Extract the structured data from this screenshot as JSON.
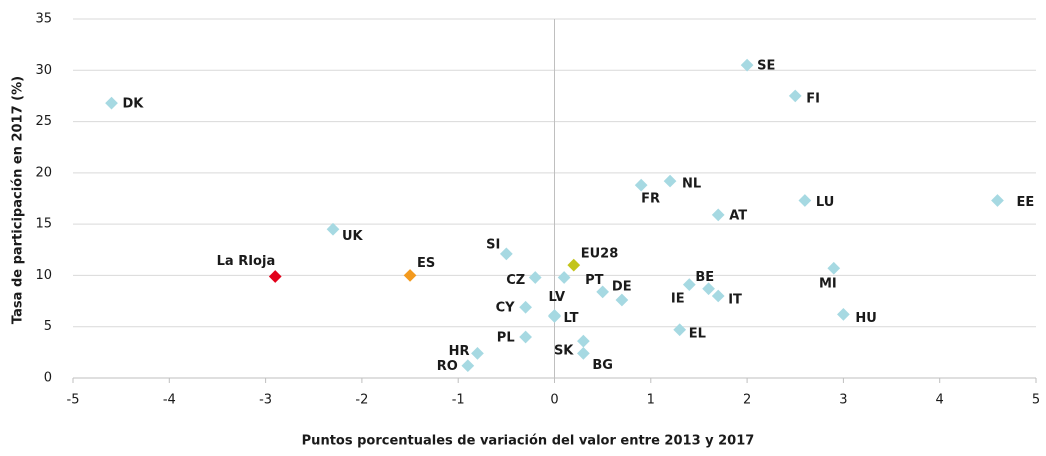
{
  "chart_data": {
    "type": "scatter",
    "xlabel": "Puntos porcentuales de variación del valor entre 2013 y 2017",
    "ylabel": "Tasa de participación en 2017 (%)",
    "labels": [
      "DK",
      "UK",
      "La RIoja",
      "ES",
      "SI",
      "CZ",
      "PT",
      "EU28",
      "LV",
      "CY",
      "LT",
      "PL",
      "HR",
      "RO",
      "SK",
      "BG",
      null,
      "DE",
      "FR",
      "NL",
      "SE",
      "FI",
      "AT",
      "LU",
      "EE",
      "BE",
      "IE",
      "IT",
      "MI",
      "HU",
      "EL"
    ],
    "x": [
      -4.6,
      -2.3,
      -2.9,
      -1.5,
      -0.5,
      -0.2,
      0.1,
      0.2,
      0.0,
      -0.3,
      0.0,
      -0.3,
      -0.8,
      -0.9,
      0.3,
      0.3,
      0.5,
      0.7,
      0.9,
      1.2,
      2.0,
      2.5,
      1.7,
      2.6,
      4.6,
      1.4,
      1.6,
      1.7,
      2.9,
      3.0,
      1.3
    ],
    "values": [
      26.8,
      14.5,
      9.9,
      10.0,
      12.1,
      9.8,
      9.8,
      11.0,
      6.1,
      6.9,
      6.0,
      4.0,
      2.4,
      1.2,
      3.6,
      2.4,
      8.4,
      7.6,
      18.8,
      19.2,
      30.5,
      27.5,
      15.9,
      17.3,
      17.3,
      9.1,
      8.7,
      8.0,
      10.7,
      6.2,
      4.7
    ],
    "colors": [
      "#a6d9e2",
      "#a6d9e2",
      "#e2001a",
      "#f39a1e",
      "#a6d9e2",
      "#a6d9e2",
      "#a6d9e2",
      "#c3c41a",
      "#a6d9e2",
      "#a6d9e2",
      "#a6d9e2",
      "#a6d9e2",
      "#a6d9e2",
      "#a6d9e2",
      "#a6d9e2",
      "#a6d9e2",
      "#a6d9e2",
      "#a6d9e2",
      "#a6d9e2",
      "#a6d9e2",
      "#a6d9e2",
      "#a6d9e2",
      "#a6d9e2",
      "#a6d9e2",
      "#a6d9e2",
      "#a6d9e2",
      "#a6d9e2",
      "#a6d9e2",
      "#a6d9e2",
      "#a6d9e2",
      "#a6d9e2"
    ],
    "xlim": [
      -5,
      5
    ],
    "xticks": [
      -5,
      -4,
      -3,
      -2,
      -1,
      0,
      1,
      2,
      3,
      4,
      5
    ],
    "ylim": [
      0,
      35
    ],
    "yticks": [
      0,
      5,
      10,
      15,
      20,
      25,
      30,
      35
    ],
    "grid": true
  }
}
